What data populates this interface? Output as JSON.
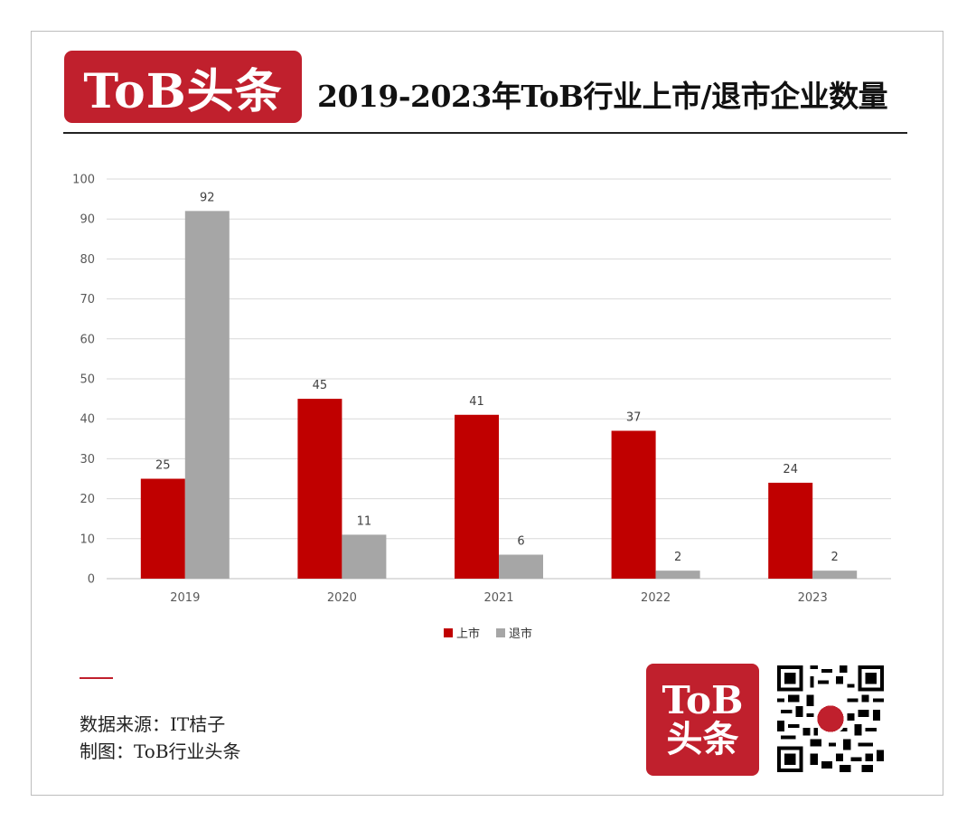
{
  "header": {
    "logo_text": "ToB头条",
    "title": "2019-2023年ToB行业上市/退市企业数量"
  },
  "chart_data": {
    "type": "bar",
    "categories": [
      "2019",
      "2020",
      "2021",
      "2022",
      "2023"
    ],
    "series": [
      {
        "name": "上市",
        "values": [
          25,
          45,
          41,
          37,
          24
        ],
        "color": "#c00000"
      },
      {
        "name": "退市",
        "values": [
          92,
          11,
          6,
          2,
          2
        ],
        "color": "#a6a6a6"
      }
    ],
    "ylim": [
      0,
      100
    ],
    "yticks": [
      0,
      10,
      20,
      30,
      40,
      50,
      60,
      70,
      80,
      90,
      100
    ],
    "grid": true,
    "legend_position": "bottom",
    "data_labels": true
  },
  "footer": {
    "source_line": "数据来源：IT桔子",
    "credit_line": "制图：ToB行业头条",
    "logo_line1": "ToB",
    "logo_line2": "头条",
    "qr_icon": "qr-code-icon"
  },
  "colors": {
    "brand": "#c0202d",
    "series_listed": "#c00000",
    "series_delisted": "#a6a6a6",
    "grid": "#d9d9d9"
  }
}
